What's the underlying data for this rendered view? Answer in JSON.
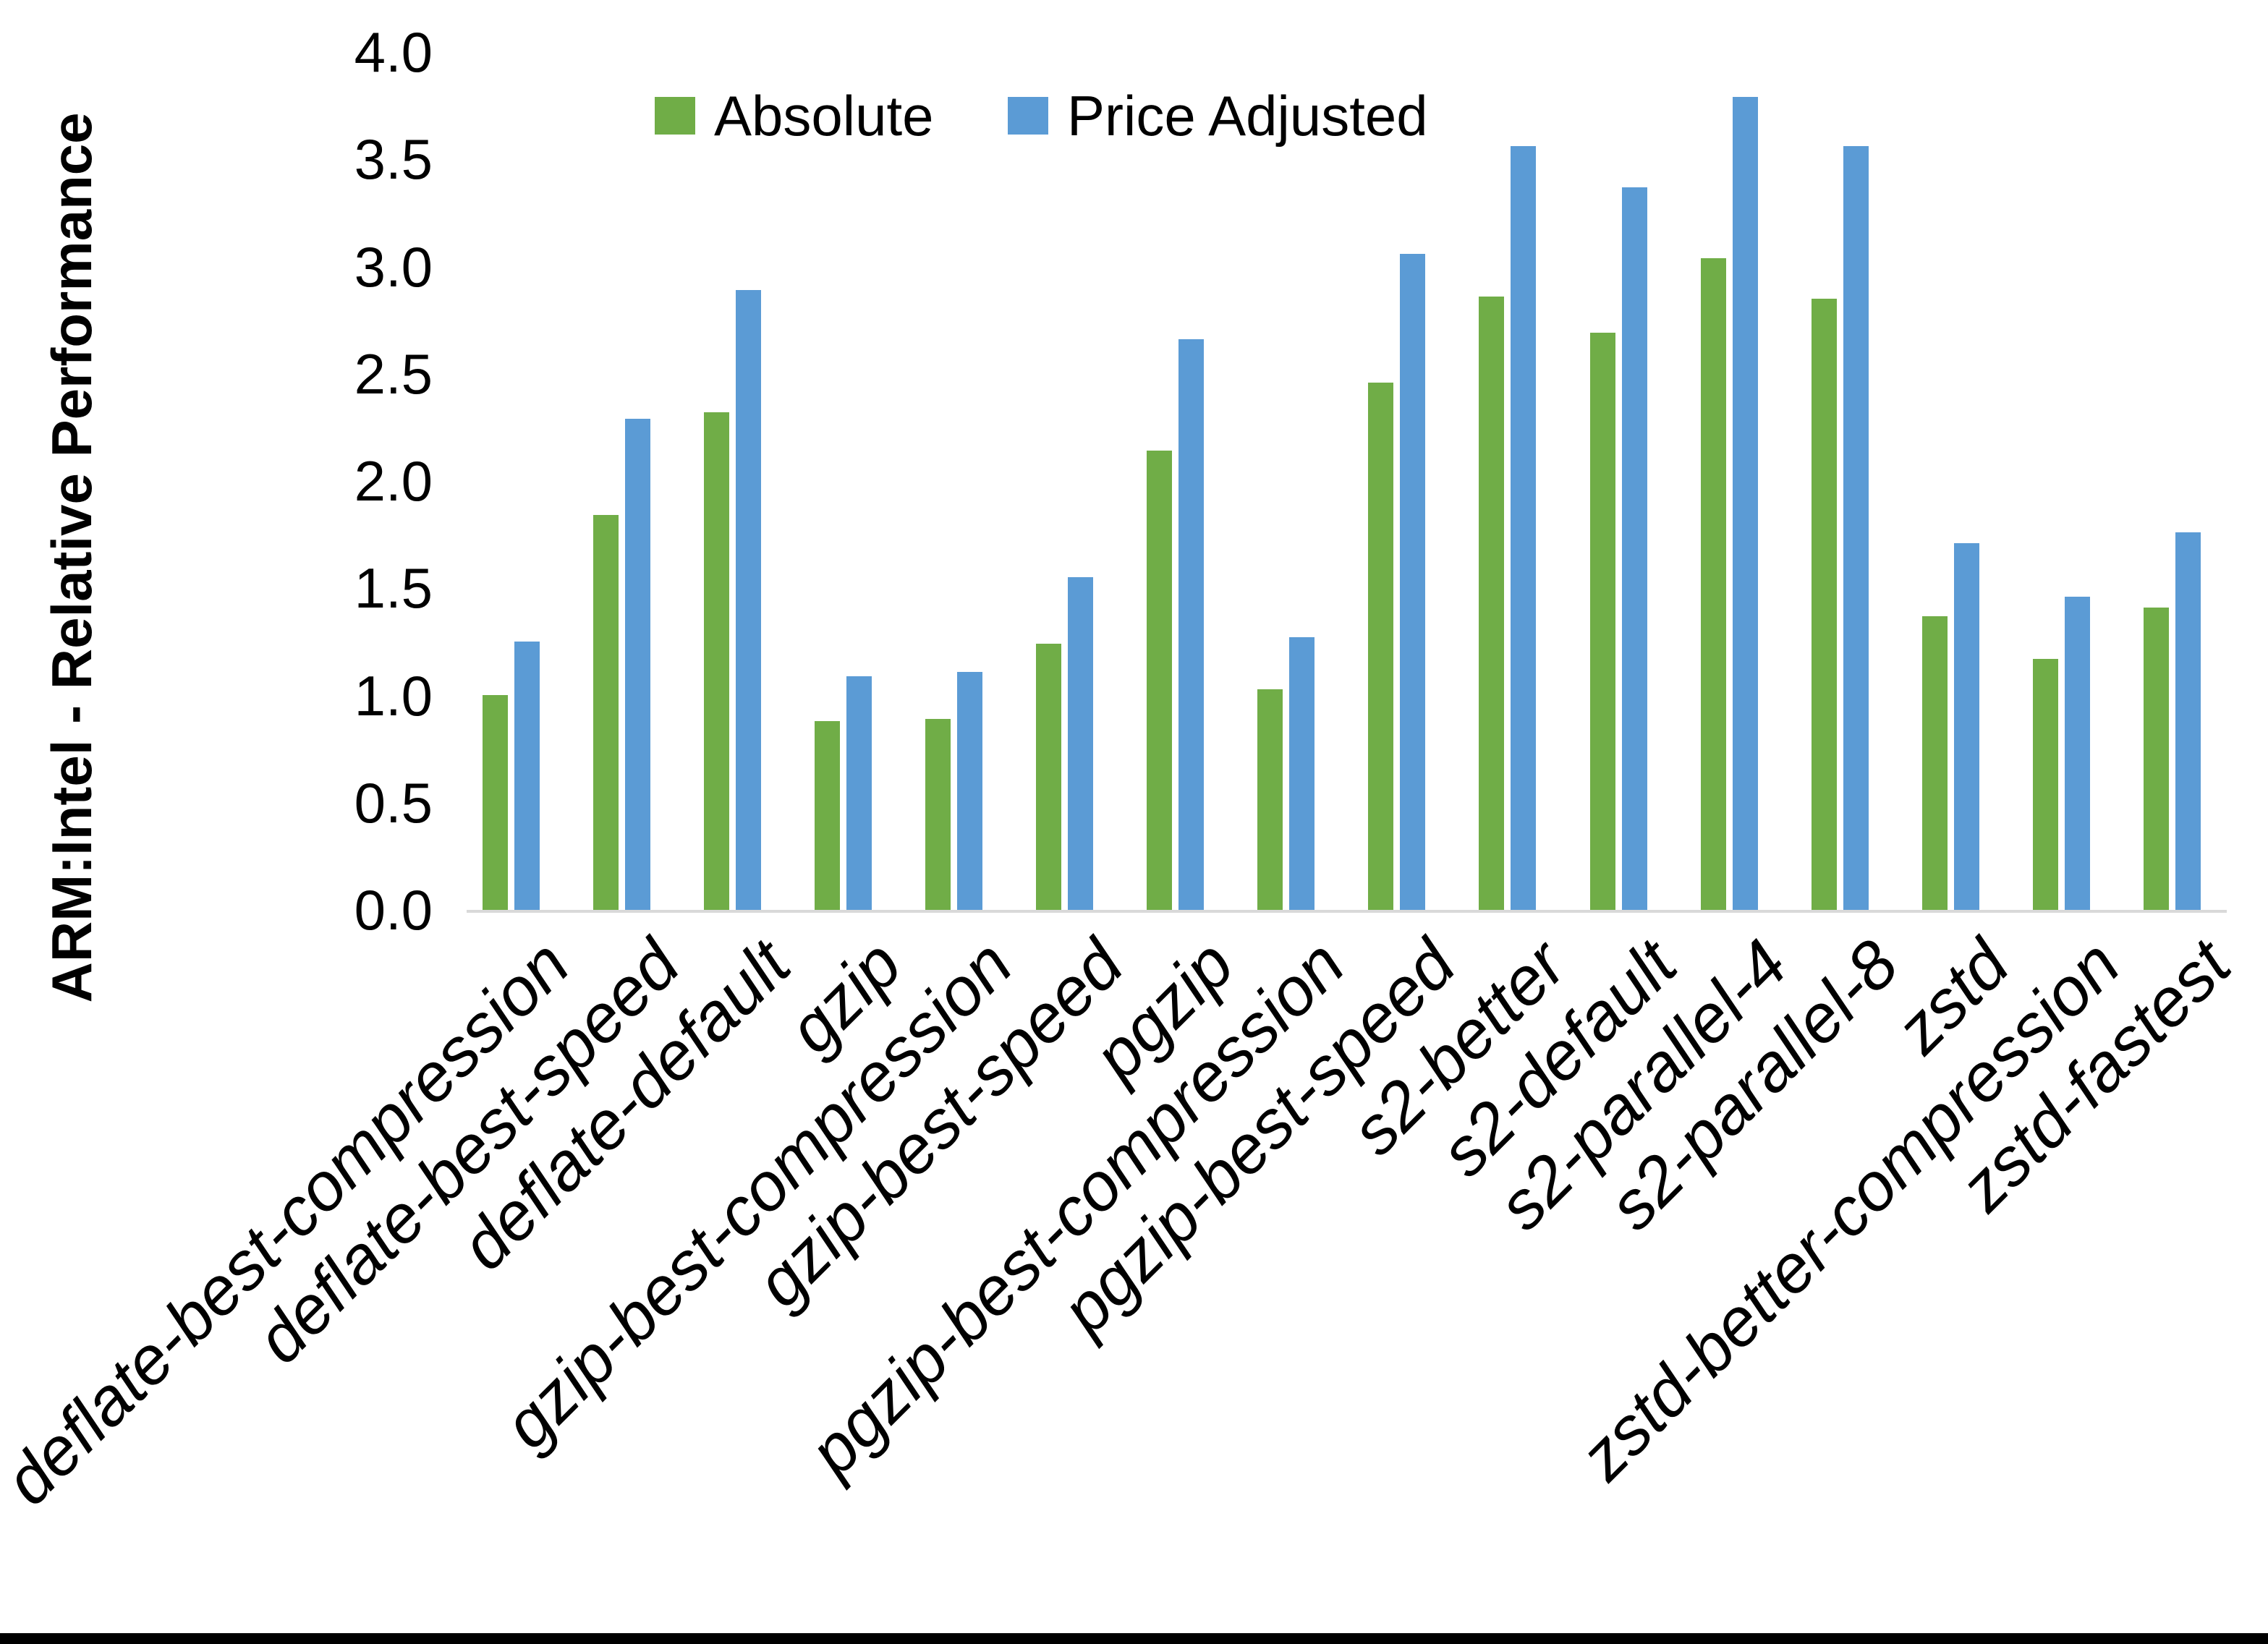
{
  "colors": {
    "absolute_series": "#70AD47",
    "price_adjusted_series": "#5B9BD5",
    "axis_line": "#D9D9D9",
    "text": "#000000",
    "background": "#FFFFFF",
    "bottom_border": "#000000"
  },
  "y_axis": {
    "title": "ARM:Intel - Relative Performance",
    "tick_labels": [
      "0.0",
      "0.5",
      "1.0",
      "1.5",
      "2.0",
      "2.5",
      "3.0",
      "3.5",
      "4.0"
    ]
  },
  "legend": {
    "items": [
      {
        "label": "Absolute",
        "color": "#70AD47"
      },
      {
        "label": "Price Adjusted",
        "color": "#5B9BD5"
      }
    ],
    "position": "top"
  },
  "chart_data": {
    "type": "bar",
    "title": "",
    "xlabel": "",
    "ylabel": "ARM:Intel - Relative Performance",
    "ylim": [
      0,
      4
    ],
    "ytick_step": 0.5,
    "grid": false,
    "legend_position": "top",
    "categories": [
      "deflate-best-compression",
      "deflate-best-speed",
      "deflate-default",
      "gzip",
      "gzip-best-compression",
      "gzip-best-speed",
      "pgzip",
      "pgzip-best-compression",
      "pgzip-best-speed",
      "s2-better",
      "s2-default",
      "s2-parallel-4",
      "s2-parallel-8",
      "zstd",
      "zstd-better-compression",
      "zstd-fastest"
    ],
    "series": [
      {
        "name": "Absolute",
        "color": "#70AD47",
        "values": [
          1.0,
          1.84,
          2.32,
          0.88,
          0.89,
          1.24,
          2.14,
          1.03,
          2.46,
          2.86,
          2.69,
          3.04,
          2.85,
          1.37,
          1.17,
          1.41
        ]
      },
      {
        "name": "Price Adjusted",
        "color": "#5B9BD5",
        "values": [
          1.25,
          2.29,
          2.89,
          1.09,
          1.11,
          1.55,
          2.66,
          1.27,
          3.06,
          3.56,
          3.37,
          3.79,
          3.56,
          1.71,
          1.46,
          1.76
        ]
      }
    ]
  }
}
